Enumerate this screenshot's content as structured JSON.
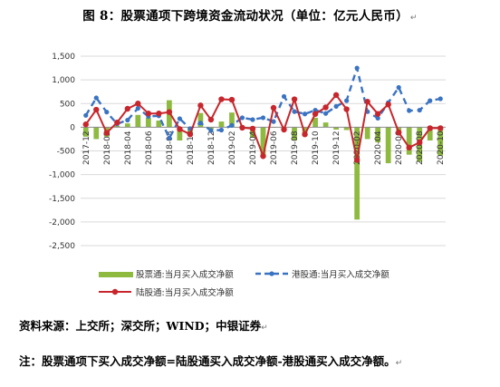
{
  "title": "图 8：股票通项下跨境资金流动状况（单位：亿元人民币）",
  "source_text": "资料来源：上交所；深交所；WIND；中银证券",
  "note_text": "注：股票通项下买入成交净额=陆股通买入成交净额-港股通买入成交净额。",
  "return_mark": "↵",
  "colors": {
    "bar": "#8dba3f",
    "hk_line": "#3a73c2",
    "mainland_line": "#c7262c",
    "grid": "#d9d9d9",
    "axis": "#8c8c8c"
  },
  "chart_data": {
    "type": "bar+line",
    "title": "图 8：股票通项下跨境资金流动状况（单位：亿元人民币）",
    "ylim": [
      -2500,
      1500
    ],
    "yticks": [
      "1,500",
      "1,000",
      "500",
      "0",
      "-500",
      "-1,000",
      "-1,500",
      "-2,000",
      "-2,500"
    ],
    "ytick_values": [
      1500,
      1000,
      500,
      0,
      -500,
      -1000,
      -1500,
      -2000,
      -2500
    ],
    "x": [
      "2017-12",
      "2018-01",
      "2018-02",
      "2018-03",
      "2018-04",
      "2018-05",
      "2018-06",
      "2018-07",
      "2018-08",
      "2018-09",
      "2018-10",
      "2018-11",
      "2018-12",
      "2019-01",
      "2019-02",
      "2019-03",
      "2019-04",
      "2019-05",
      "2019-06",
      "2019-07",
      "2019-08",
      "2019-09",
      "2019-10",
      "2019-11",
      "2019-12",
      "2020-01",
      "2020-02",
      "2020-03",
      "2020-04",
      "2020-05",
      "2020-06",
      "2020-07",
      "2020-08",
      "2020-09",
      "2020-10"
    ],
    "xtick_labels": [
      "2017-12",
      "2018-02",
      "2018-04",
      "2018-06",
      "2018-08",
      "2018-10",
      "2018-12",
      "2019-02",
      "2019-04",
      "2019-06",
      "2019-08",
      "2019-10",
      "2019-12",
      "2020-02",
      "2020-04",
      "2020-06",
      "2020-08",
      "2020-10"
    ],
    "legend": [
      "股票通:当月买入成交净额",
      "港股通:当月买入成交净额",
      "陆股通:当月买入成交净额"
    ],
    "series": [
      {
        "name": "股票通:当月买入成交净额",
        "kind": "bar",
        "values": [
          -200,
          -250,
          -200,
          30,
          80,
          260,
          200,
          140,
          570,
          -280,
          -130,
          300,
          -50,
          120,
          310,
          -30,
          -220,
          -620,
          -10,
          -70,
          -280,
          -190,
          200,
          100,
          -50,
          -60,
          -1950,
          -250,
          -320,
          -760,
          -120,
          -580,
          -730,
          -280,
          -600
        ]
      },
      {
        "name": "港股通:当月买入成交净额",
        "kind": "dashed-line",
        "values": [
          250,
          620,
          320,
          70,
          150,
          400,
          230,
          240,
          -230,
          180,
          -30,
          90,
          -70,
          -60,
          40,
          200,
          160,
          200,
          120,
          650,
          330,
          280,
          360,
          290,
          440,
          560,
          1250,
          330,
          190,
          520,
          840,
          350,
          360,
          560,
          600
        ]
      },
      {
        "name": "陆股通:当月买入成交净额",
        "kind": "line",
        "values": [
          60,
          370,
          -120,
          100,
          390,
          500,
          290,
          290,
          320,
          -40,
          -150,
          460,
          160,
          590,
          580,
          -10,
          -30,
          -610,
          410,
          -50,
          590,
          -150,
          280,
          420,
          680,
          380,
          -690,
          540,
          280,
          480,
          -110,
          -430,
          -320,
          -20,
          -20
        ]
      }
    ]
  }
}
